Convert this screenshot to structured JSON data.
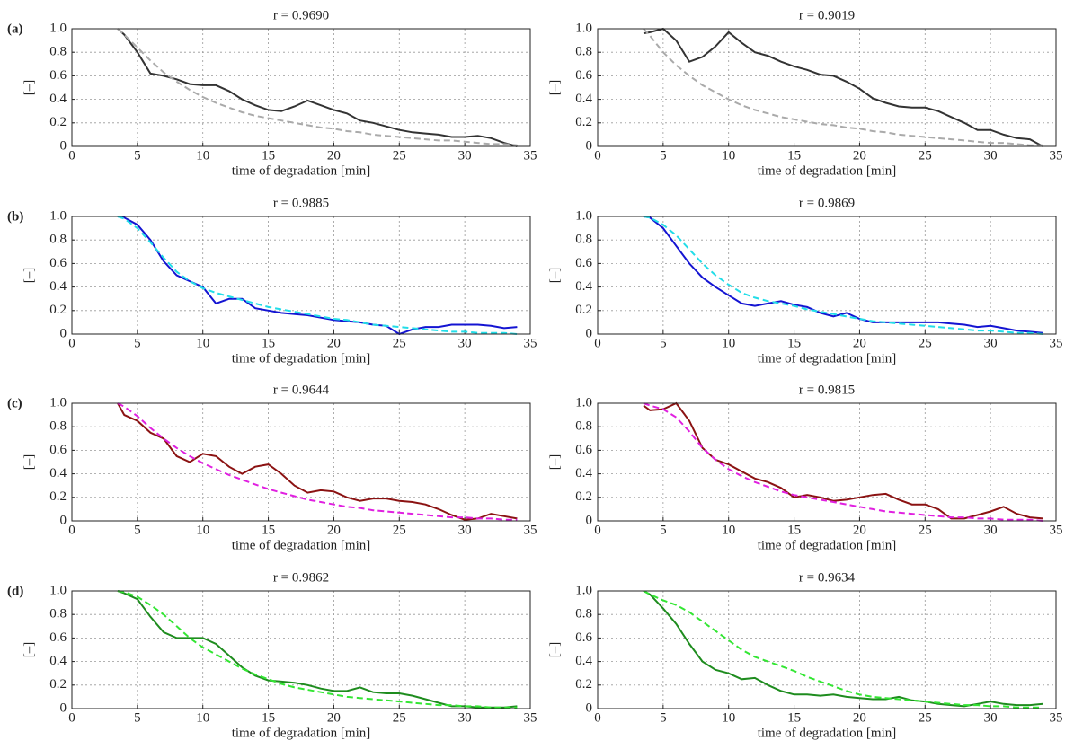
{
  "panel_labels": [
    "(a)",
    "(b)",
    "(c)",
    "(d)"
  ],
  "chart_data": [
    {
      "type": "line",
      "title": "r = 0.9690",
      "x_label": "time of degradation [min]",
      "y_label": "[–]",
      "xlim": [
        0,
        35
      ],
      "ylim": [
        0,
        1
      ],
      "xticks": [
        0,
        5,
        10,
        15,
        20,
        25,
        30,
        35
      ],
      "yticks": [
        0,
        0.2,
        0.4,
        0.6,
        0.8,
        {
          "value": 1,
          "label": "1.0"
        }
      ],
      "grid": true,
      "x": [
        3.5,
        4,
        5,
        6,
        7,
        8,
        9,
        10,
        11,
        12,
        13,
        14,
        15,
        16,
        17,
        18,
        19,
        20,
        21,
        22,
        23,
        24,
        25,
        26,
        27,
        28,
        29,
        30,
        31,
        32,
        33,
        34
      ],
      "series": [
        {
          "color": "#333333",
          "style": "solid",
          "values": [
            1.0,
            0.95,
            0.8,
            0.62,
            0.6,
            0.57,
            0.53,
            0.52,
            0.52,
            0.47,
            0.4,
            0.35,
            0.31,
            0.3,
            0.34,
            0.39,
            0.35,
            0.31,
            0.28,
            0.22,
            0.2,
            0.17,
            0.14,
            0.12,
            0.11,
            0.1,
            0.08,
            0.08,
            0.09,
            0.07,
            0.03,
            0.0
          ]
        },
        {
          "color": "#aaaaaa",
          "style": "dashed",
          "values": [
            1.0,
            0.95,
            0.84,
            0.73,
            0.63,
            0.55,
            0.48,
            0.42,
            0.37,
            0.33,
            0.29,
            0.26,
            0.24,
            0.22,
            0.2,
            0.18,
            0.16,
            0.15,
            0.13,
            0.12,
            0.1,
            0.09,
            0.08,
            0.07,
            0.06,
            0.05,
            0.05,
            0.04,
            0.03,
            0.02,
            0.02,
            0.01
          ]
        }
      ]
    },
    {
      "type": "line",
      "title": "r = 0.9019",
      "x_label": "time of degradation [min]",
      "y_label": "[–]",
      "xlim": [
        0,
        35
      ],
      "ylim": [
        0,
        1
      ],
      "xticks": [
        0,
        5,
        10,
        15,
        20,
        25,
        30,
        35
      ],
      "yticks": [
        0,
        0.2,
        0.4,
        0.6,
        0.8,
        {
          "value": 1,
          "label": "1.0"
        }
      ],
      "grid": true,
      "x": [
        3.5,
        4,
        5,
        6,
        7,
        8,
        9,
        10,
        11,
        12,
        13,
        14,
        15,
        16,
        17,
        18,
        19,
        20,
        21,
        22,
        23,
        24,
        25,
        26,
        27,
        28,
        29,
        30,
        31,
        32,
        33,
        34
      ],
      "series": [
        {
          "color": "#333333",
          "style": "solid",
          "values": [
            0.96,
            0.97,
            1.0,
            0.9,
            0.72,
            0.76,
            0.85,
            0.97,
            0.88,
            0.8,
            0.77,
            0.72,
            0.68,
            0.65,
            0.61,
            0.6,
            0.55,
            0.49,
            0.41,
            0.37,
            0.34,
            0.33,
            0.33,
            0.3,
            0.25,
            0.2,
            0.14,
            0.14,
            0.1,
            0.07,
            0.06,
            0.0
          ]
        },
        {
          "color": "#aaaaaa",
          "style": "dashed",
          "values": [
            1.0,
            0.94,
            0.8,
            0.69,
            0.6,
            0.52,
            0.46,
            0.4,
            0.35,
            0.31,
            0.28,
            0.25,
            0.23,
            0.21,
            0.19,
            0.18,
            0.16,
            0.15,
            0.13,
            0.12,
            0.1,
            0.09,
            0.08,
            0.07,
            0.06,
            0.05,
            0.04,
            0.03,
            0.03,
            0.02,
            0.01,
            0.01
          ]
        }
      ]
    },
    {
      "type": "line",
      "title": "r = 0.9885",
      "x_label": "time of degradation [min]",
      "y_label": "[–]",
      "xlim": [
        0,
        35
      ],
      "ylim": [
        0,
        1
      ],
      "xticks": [
        0,
        5,
        10,
        15,
        20,
        25,
        30,
        35
      ],
      "yticks": [
        0,
        0.2,
        0.4,
        0.6,
        0.8,
        {
          "value": 1,
          "label": "1.0"
        }
      ],
      "grid": true,
      "x": [
        3.5,
        4,
        5,
        6,
        7,
        8,
        9,
        10,
        11,
        12,
        13,
        14,
        15,
        16,
        17,
        18,
        19,
        20,
        21,
        22,
        23,
        24,
        25,
        26,
        27,
        28,
        29,
        30,
        31,
        32,
        33,
        34
      ],
      "series": [
        {
          "color": "#1414d2",
          "style": "solid",
          "values": [
            1.0,
            0.99,
            0.93,
            0.8,
            0.62,
            0.5,
            0.45,
            0.4,
            0.26,
            0.3,
            0.3,
            0.22,
            0.2,
            0.18,
            0.17,
            0.16,
            0.14,
            0.12,
            0.11,
            0.1,
            0.08,
            0.07,
            0.0,
            0.04,
            0.06,
            0.06,
            0.08,
            0.08,
            0.08,
            0.07,
            0.05,
            0.06
          ]
        },
        {
          "color": "#22dde8",
          "style": "dashed",
          "values": [
            1.0,
            0.98,
            0.9,
            0.78,
            0.65,
            0.53,
            0.45,
            0.39,
            0.35,
            0.32,
            0.29,
            0.26,
            0.23,
            0.21,
            0.19,
            0.17,
            0.15,
            0.13,
            0.12,
            0.1,
            0.08,
            0.07,
            0.06,
            0.05,
            0.04,
            0.03,
            0.02,
            0.02,
            0.01,
            0.01,
            0.01,
            0.0
          ]
        }
      ]
    },
    {
      "type": "line",
      "title": "r = 0.9869",
      "x_label": "time of degradation [min]",
      "y_label": "[–]",
      "xlim": [
        0,
        35
      ],
      "ylim": [
        0,
        1
      ],
      "xticks": [
        0,
        5,
        10,
        15,
        20,
        25,
        30,
        35
      ],
      "yticks": [
        0,
        0.2,
        0.4,
        0.6,
        0.8,
        {
          "value": 1,
          "label": "1.0"
        }
      ],
      "grid": true,
      "x": [
        3.5,
        4,
        5,
        6,
        7,
        8,
        9,
        10,
        11,
        12,
        13,
        14,
        15,
        16,
        17,
        18,
        19,
        20,
        21,
        22,
        23,
        24,
        25,
        26,
        27,
        28,
        29,
        30,
        31,
        32,
        33,
        34
      ],
      "series": [
        {
          "color": "#1414d2",
          "style": "solid",
          "values": [
            1.0,
            0.99,
            0.9,
            0.75,
            0.6,
            0.48,
            0.4,
            0.33,
            0.26,
            0.24,
            0.26,
            0.28,
            0.25,
            0.23,
            0.18,
            0.15,
            0.18,
            0.13,
            0.1,
            0.1,
            0.1,
            0.1,
            0.1,
            0.1,
            0.09,
            0.08,
            0.06,
            0.07,
            0.05,
            0.03,
            0.02,
            0.01
          ]
        },
        {
          "color": "#22dde8",
          "style": "dashed",
          "values": [
            1.0,
            0.99,
            0.93,
            0.84,
            0.72,
            0.6,
            0.5,
            0.42,
            0.35,
            0.31,
            0.28,
            0.26,
            0.24,
            0.21,
            0.19,
            0.17,
            0.15,
            0.13,
            0.11,
            0.1,
            0.09,
            0.08,
            0.07,
            0.06,
            0.05,
            0.04,
            0.03,
            0.03,
            0.02,
            0.01,
            0.01,
            0.0
          ]
        }
      ]
    },
    {
      "type": "line",
      "title": "r = 0.9644",
      "x_label": "time of degradation [min]",
      "y_label": "[–]",
      "xlim": [
        0,
        35
      ],
      "ylim": [
        0,
        1
      ],
      "xticks": [
        0,
        5,
        10,
        15,
        20,
        25,
        30,
        35
      ],
      "yticks": [
        0,
        0.2,
        0.4,
        0.6,
        0.8,
        {
          "value": 1,
          "label": "1.0"
        }
      ],
      "grid": true,
      "x": [
        3.5,
        4,
        5,
        6,
        7,
        8,
        9,
        10,
        11,
        12,
        13,
        14,
        15,
        16,
        17,
        18,
        19,
        20,
        21,
        22,
        23,
        24,
        25,
        26,
        27,
        28,
        29,
        30,
        31,
        32,
        33,
        34
      ],
      "series": [
        {
          "color": "#8b1212",
          "style": "solid",
          "values": [
            1.0,
            0.9,
            0.85,
            0.75,
            0.7,
            0.55,
            0.5,
            0.57,
            0.55,
            0.46,
            0.4,
            0.46,
            0.48,
            0.4,
            0.3,
            0.24,
            0.26,
            0.25,
            0.2,
            0.17,
            0.19,
            0.19,
            0.17,
            0.16,
            0.14,
            0.1,
            0.05,
            0.01,
            0.02,
            0.06,
            0.04,
            0.02
          ]
        },
        {
          "color": "#e020e0",
          "style": "dashed",
          "values": [
            1.0,
            0.97,
            0.89,
            0.79,
            0.7,
            0.62,
            0.55,
            0.49,
            0.44,
            0.39,
            0.35,
            0.31,
            0.27,
            0.24,
            0.21,
            0.18,
            0.16,
            0.14,
            0.12,
            0.11,
            0.09,
            0.08,
            0.07,
            0.06,
            0.05,
            0.04,
            0.03,
            0.03,
            0.02,
            0.02,
            0.01,
            0.01
          ]
        }
      ]
    },
    {
      "type": "line",
      "title": "r = 0.9815",
      "x_label": "time of degradation [min]",
      "y_label": "[–]",
      "xlim": [
        0,
        35
      ],
      "ylim": [
        0,
        1
      ],
      "xticks": [
        0,
        5,
        10,
        15,
        20,
        25,
        30,
        35
      ],
      "yticks": [
        0,
        0.2,
        0.4,
        0.6,
        0.8,
        {
          "value": 1,
          "label": "1.0"
        }
      ],
      "grid": true,
      "x": [
        3.5,
        4,
        5,
        6,
        7,
        8,
        9,
        10,
        11,
        12,
        13,
        14,
        15,
        16,
        17,
        18,
        19,
        20,
        21,
        22,
        23,
        24,
        25,
        26,
        27,
        28,
        29,
        30,
        31,
        32,
        33,
        34
      ],
      "series": [
        {
          "color": "#8b1212",
          "style": "solid",
          "values": [
            0.98,
            0.94,
            0.95,
            1.0,
            0.85,
            0.62,
            0.52,
            0.48,
            0.42,
            0.36,
            0.33,
            0.28,
            0.2,
            0.22,
            0.2,
            0.17,
            0.18,
            0.2,
            0.22,
            0.23,
            0.18,
            0.14,
            0.14,
            0.1,
            0.02,
            0.02,
            0.05,
            0.08,
            0.12,
            0.06,
            0.03,
            0.02
          ]
        },
        {
          "color": "#e020e0",
          "style": "dashed",
          "values": [
            1.0,
            0.98,
            0.95,
            0.88,
            0.76,
            0.62,
            0.52,
            0.44,
            0.38,
            0.33,
            0.29,
            0.25,
            0.22,
            0.2,
            0.18,
            0.16,
            0.14,
            0.12,
            0.1,
            0.08,
            0.07,
            0.06,
            0.05,
            0.04,
            0.03,
            0.03,
            0.02,
            0.02,
            0.01,
            0.01,
            0.01,
            0.0
          ]
        }
      ]
    },
    {
      "type": "line",
      "title": "r = 0.9862",
      "x_label": "time of degradation [min]",
      "y_label": "[–]",
      "xlim": [
        0,
        35
      ],
      "ylim": [
        0,
        1
      ],
      "xticks": [
        0,
        5,
        10,
        15,
        20,
        25,
        30,
        35
      ],
      "yticks": [
        0,
        0.2,
        0.4,
        0.6,
        0.8,
        {
          "value": 1,
          "label": "1.0"
        }
      ],
      "grid": true,
      "x": [
        3.5,
        4,
        5,
        6,
        7,
        8,
        9,
        10,
        11,
        12,
        13,
        14,
        15,
        16,
        17,
        18,
        19,
        20,
        21,
        22,
        23,
        24,
        25,
        26,
        27,
        28,
        29,
        30,
        31,
        32,
        33,
        34
      ],
      "series": [
        {
          "color": "#1e8c1e",
          "style": "solid",
          "values": [
            1.0,
            0.98,
            0.93,
            0.78,
            0.65,
            0.6,
            0.6,
            0.6,
            0.55,
            0.45,
            0.35,
            0.28,
            0.24,
            0.23,
            0.22,
            0.2,
            0.17,
            0.15,
            0.15,
            0.18,
            0.14,
            0.13,
            0.13,
            0.11,
            0.08,
            0.05,
            0.02,
            0.02,
            0.01,
            0.01,
            0.01,
            0.02
          ]
        },
        {
          "color": "#33e633",
          "style": "dashed",
          "values": [
            1.0,
            0.99,
            0.95,
            0.88,
            0.8,
            0.7,
            0.6,
            0.52,
            0.46,
            0.4,
            0.34,
            0.29,
            0.25,
            0.21,
            0.18,
            0.16,
            0.14,
            0.12,
            0.1,
            0.09,
            0.08,
            0.07,
            0.06,
            0.05,
            0.04,
            0.03,
            0.03,
            0.02,
            0.02,
            0.01,
            0.01,
            0.01
          ]
        }
      ]
    },
    {
      "type": "line",
      "title": "r = 0.9634",
      "x_label": "time of degradation [min]",
      "y_label": "[–]",
      "xlim": [
        0,
        35
      ],
      "ylim": [
        0,
        1
      ],
      "xticks": [
        0,
        5,
        10,
        15,
        20,
        25,
        30,
        35
      ],
      "yticks": [
        0,
        0.2,
        0.4,
        0.6,
        0.8,
        {
          "value": 1,
          "label": "1.0"
        }
      ],
      "grid": true,
      "x": [
        3.5,
        4,
        5,
        6,
        7,
        8,
        9,
        10,
        11,
        12,
        13,
        14,
        15,
        16,
        17,
        18,
        19,
        20,
        21,
        22,
        23,
        24,
        25,
        26,
        27,
        28,
        29,
        30,
        31,
        32,
        33,
        34
      ],
      "series": [
        {
          "color": "#1e8c1e",
          "style": "solid",
          "values": [
            1.0,
            0.97,
            0.85,
            0.72,
            0.55,
            0.4,
            0.33,
            0.3,
            0.25,
            0.26,
            0.2,
            0.15,
            0.12,
            0.12,
            0.11,
            0.12,
            0.1,
            0.09,
            0.08,
            0.08,
            0.1,
            0.07,
            0.06,
            0.04,
            0.03,
            0.02,
            0.04,
            0.06,
            0.04,
            0.03,
            0.03,
            0.04
          ]
        },
        {
          "color": "#33e633",
          "style": "dashed",
          "values": [
            1.0,
            0.97,
            0.92,
            0.88,
            0.82,
            0.74,
            0.66,
            0.58,
            0.5,
            0.44,
            0.4,
            0.36,
            0.32,
            0.27,
            0.23,
            0.19,
            0.15,
            0.12,
            0.1,
            0.09,
            0.08,
            0.07,
            0.06,
            0.05,
            0.04,
            0.03,
            0.03,
            0.02,
            0.02,
            0.01,
            0.01,
            0.01
          ]
        }
      ]
    }
  ]
}
